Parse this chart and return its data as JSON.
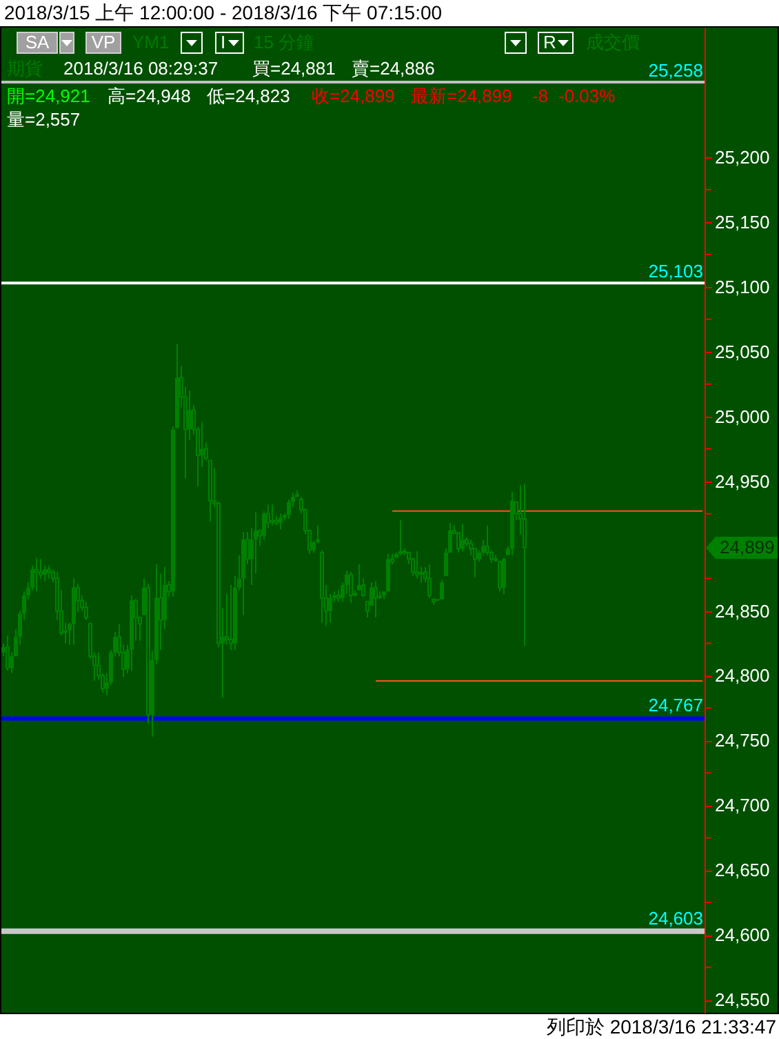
{
  "chart_data": {
    "type": "candlestick",
    "title": "2018/3/15 上午 12:00:00 - 2018/3/16 下午 07:15:00",
    "categories": [
      null,
      null,
      null,
      null,
      null,
      null,
      null,
      null,
      null,
      null,
      null,
      null,
      null,
      null,
      null,
      null,
      null,
      null,
      null,
      null,
      null,
      null,
      null,
      null,
      null,
      null,
      null,
      null,
      null,
      null,
      null,
      null,
      null,
      null,
      null,
      null,
      null,
      null,
      null,
      null,
      null,
      null,
      null,
      null,
      null,
      null,
      null,
      null,
      null,
      null,
      null,
      null,
      null,
      null,
      null,
      null,
      null,
      null,
      null,
      null,
      null,
      null,
      null,
      null,
      null,
      null,
      null,
      null,
      null,
      null,
      null,
      null,
      null,
      null,
      null,
      null,
      null,
      null,
      null,
      null,
      null,
      null,
      null,
      null,
      null,
      null,
      null,
      null,
      null,
      null,
      null,
      null,
      null,
      null,
      null,
      null,
      null,
      null,
      null,
      null,
      null,
      null,
      null,
      null,
      null,
      null,
      null,
      null,
      null,
      null,
      null,
      null,
      null,
      null,
      null,
      null,
      null,
      null,
      null,
      null,
      null,
      null,
      null,
      null,
      null,
      null,
      null,
      null,
      null,
      null,
      null,
      null,
      null,
      null,
      null,
      null,
      null,
      null,
      null,
      null,
      null,
      null,
      null,
      null,
      null,
      null,
      null,
      null,
      null,
      null,
      null,
      null,
      null,
      null,
      null,
      null,
      null,
      null,
      null,
      null,
      null,
      null,
      null,
      null,
      null,
      null,
      null,
      null,
      null,
      null
    ],
    "color": "#008000",
    "ohlc": [
      [
        24818,
        24825,
        24815,
        24822
      ],
      [
        24822,
        24831,
        24804,
        24806
      ],
      [
        24806,
        24818,
        24802,
        24815
      ],
      [
        24815,
        24836,
        24815,
        24830
      ],
      [
        24830,
        24850,
        24824,
        24848
      ],
      [
        24848,
        24865,
        24843,
        24862
      ],
      [
        24862,
        24872,
        24859,
        24868
      ],
      [
        24868,
        24885,
        24866,
        24882
      ],
      [
        24882,
        24891,
        24865,
        24880
      ],
      [
        24880,
        24890,
        24875,
        24878
      ],
      [
        24878,
        24885,
        24873,
        24882
      ],
      [
        24882,
        24885,
        24875,
        24880
      ],
      [
        24880,
        24882,
        24872,
        24875
      ],
      [
        24875,
        24880,
        24843,
        24850
      ],
      [
        24850,
        24866,
        24831,
        24833
      ],
      [
        24833,
        24841,
        24825,
        24835
      ],
      [
        24835,
        24841,
        24824,
        24840
      ],
      [
        24840,
        24875,
        24824,
        24868
      ],
      [
        24868,
        24871,
        24849,
        24858
      ],
      [
        24858,
        24862,
        24850,
        24853
      ],
      [
        24853,
        24857,
        24843,
        24845
      ],
      [
        24840,
        24841,
        24813,
        24815
      ],
      [
        24815,
        24818,
        24796,
        24808
      ],
      [
        24808,
        24818,
        24797,
        24800
      ],
      [
        24800,
        24802,
        24787,
        24790
      ],
      [
        24790,
        24802,
        24785,
        24795
      ],
      [
        24795,
        24820,
        24793,
        24818
      ],
      [
        24818,
        24834,
        24815,
        24830
      ],
      [
        24830,
        24840,
        24815,
        24818
      ],
      [
        24818,
        24824,
        24799,
        24805
      ],
      [
        24805,
        24824,
        24802,
        24820
      ],
      [
        24820,
        24862,
        24804,
        24858
      ],
      [
        24858,
        24859,
        24827,
        24845
      ],
      [
        24845,
        24845,
        24827,
        24840
      ],
      [
        24847,
        24875,
        24847,
        24868
      ],
      [
        24868,
        24871,
        24763,
        24770
      ],
      [
        24770,
        24819,
        24753,
        24812
      ],
      [
        24812,
        24886,
        24809,
        24860
      ],
      [
        24860,
        24879,
        24820,
        24843
      ],
      [
        24843,
        24884,
        24836,
        24870
      ],
      [
        24870,
        24873,
        24861,
        24865
      ],
      [
        24865,
        24992,
        24861,
        24990
      ],
      [
        24991,
        25056,
        24991,
        25030
      ],
      [
        25030,
        25039,
        25007,
        25015
      ],
      [
        25015,
        25023,
        24952,
        24990
      ],
      [
        24990,
        25020,
        24982,
        25005
      ],
      [
        25005,
        25009,
        24986,
        24990
      ],
      [
        24990,
        24992,
        24946,
        24970
      ],
      [
        24970,
        24996,
        24961,
        24975
      ],
      [
        24975,
        24980,
        24966,
        24968
      ],
      [
        24966,
        24966,
        24919,
        24935
      ],
      [
        24935,
        24960,
        24930,
        24933
      ],
      [
        24933,
        24934,
        24822,
        24825
      ],
      [
        24825,
        24852,
        24783,
        24830
      ],
      [
        24830,
        24863,
        24824,
        24828
      ],
      [
        24828,
        24870,
        24820,
        24825
      ],
      [
        24825,
        24877,
        24820,
        24868
      ],
      [
        24868,
        24893,
        24866,
        24875
      ],
      [
        24875,
        24911,
        24847,
        24905
      ],
      [
        24905,
        24911,
        24886,
        24890
      ],
      [
        24890,
        24914,
        24870,
        24905
      ],
      [
        24905,
        24926,
        24879,
        24912
      ],
      [
        24912,
        24913,
        24900,
        24908
      ],
      [
        24908,
        24927,
        24905,
        24925
      ],
      [
        24925,
        24932,
        24914,
        24918
      ],
      [
        24918,
        24932,
        24916,
        24920
      ],
      [
        24920,
        24923,
        24916,
        24918
      ],
      [
        24918,
        24925,
        24913,
        24922
      ],
      [
        24922,
        24925,
        24920,
        24924
      ],
      [
        24924,
        24936,
        24921,
        24934
      ],
      [
        24934,
        24941,
        24930,
        24938
      ],
      [
        24938,
        24943,
        24938,
        24940
      ],
      [
        24936,
        24938,
        24925,
        24928
      ],
      [
        24928,
        24929,
        24909,
        24912
      ],
      [
        24912,
        24912,
        24894,
        24897
      ],
      [
        24897,
        24904,
        24895,
        24903
      ],
      [
        24903,
        24916,
        24902,
        24905
      ],
      [
        24895,
        24897,
        24841,
        24860
      ],
      [
        24860,
        24870,
        24838,
        24850
      ],
      [
        24850,
        24863,
        24841,
        24860
      ],
      [
        24860,
        24865,
        24857,
        24862
      ],
      [
        24862,
        24866,
        24857,
        24860
      ],
      [
        24860,
        24872,
        24857,
        24870
      ],
      [
        24870,
        24881,
        24863,
        24878
      ],
      [
        24878,
        24880,
        24856,
        24862
      ],
      [
        24862,
        24866,
        24861,
        24864
      ],
      [
        24866,
        24886,
        24866,
        24870
      ],
      [
        24870,
        24875,
        24861,
        24862
      ],
      [
        24857,
        24857,
        24845,
        24850
      ],
      [
        24854,
        24872,
        24854,
        24868
      ],
      [
        24868,
        24873,
        24845,
        24860
      ],
      [
        24860,
        24865,
        24859,
        24862
      ],
      [
        24862,
        24865,
        24859,
        24865
      ],
      [
        24865,
        24894,
        24865,
        24890
      ],
      [
        24890,
        24894,
        24886,
        24888
      ],
      [
        24891,
        24895,
        24891,
        24894
      ],
      [
        24894,
        24920,
        24893,
        24896
      ],
      [
        24896,
        24898,
        24893,
        24895
      ],
      [
        24895,
        24895,
        24886,
        24890
      ],
      [
        24890,
        24891,
        24877,
        24880
      ],
      [
        24880,
        24896,
        24875,
        24878
      ],
      [
        24878,
        24884,
        24872,
        24880
      ],
      [
        24880,
        24884,
        24872,
        24875
      ],
      [
        24875,
        24886,
        24860,
        24862
      ],
      [
        24859,
        24859,
        24855,
        24857
      ],
      [
        24858,
        24859,
        24858,
        24859
      ],
      [
        24859,
        24874,
        24859,
        24872
      ],
      [
        24877,
        24898,
        24877,
        24895
      ],
      [
        24895,
        24918,
        24895,
        24912
      ],
      [
        24912,
        24916,
        24909,
        24910
      ],
      [
        24910,
        24911,
        24895,
        24898
      ],
      [
        24898,
        24917,
        24896,
        24905
      ],
      [
        24905,
        24907,
        24900,
        24902
      ],
      [
        24902,
        24905,
        24893,
        24898
      ],
      [
        24898,
        24898,
        24876,
        24890
      ],
      [
        24890,
        24897,
        24888,
        24895
      ],
      [
        24895,
        24905,
        24893,
        24900
      ],
      [
        24900,
        24916,
        24893,
        24895
      ],
      [
        24895,
        24897,
        24887,
        24890
      ],
      [
        24890,
        24893,
        24888,
        24889
      ],
      [
        24888,
        24888,
        24865,
        24868
      ],
      [
        24868,
        24891,
        24863,
        24890
      ],
      [
        24893,
        24900,
        24893,
        24898
      ],
      [
        24898,
        24942,
        24893,
        24935
      ],
      [
        24934,
        24934,
        24920,
        24925
      ],
      [
        24925,
        24947,
        24909,
        24921
      ],
      [
        24921,
        24948,
        24823,
        24899
      ],
      null,
      null,
      null,
      null,
      null,
      null,
      null,
      null,
      null,
      null,
      null,
      null,
      null,
      null,
      null,
      null,
      null,
      null,
      null,
      null,
      null,
      null,
      null,
      null,
      null,
      null,
      null,
      null,
      null,
      null,
      null,
      null,
      null,
      null,
      null,
      null,
      null,
      null,
      null,
      null,
      null,
      null,
      null
    ],
    "series": [
      {
        "type": "line",
        "color": "#ff5020",
        "values": [
          null,
          null,
          null,
          null,
          null,
          null,
          null,
          null,
          null,
          null,
          null,
          null,
          null,
          null,
          null,
          null,
          null,
          null,
          null,
          null,
          null,
          null,
          null,
          null,
          null,
          null,
          null,
          null,
          null,
          null,
          null,
          null,
          null,
          null,
          null,
          null,
          null,
          null,
          null,
          null,
          null,
          null,
          null,
          null,
          null,
          null,
          null,
          null,
          null,
          null,
          null,
          null,
          null,
          null,
          null,
          null,
          null,
          null,
          null,
          null,
          null,
          null,
          null,
          null,
          null,
          null,
          null,
          null,
          null,
          null,
          null,
          null,
          null,
          null,
          null,
          null,
          null,
          null,
          null,
          null,
          null,
          null,
          null,
          null,
          null,
          null,
          null,
          null,
          null,
          null,
          null,
          null,
          null,
          null,
          24927,
          24927,
          24927,
          24927,
          24927,
          24927,
          24927,
          24927,
          24927,
          24927,
          24927,
          24927,
          24927,
          24927,
          24927,
          24927,
          24927,
          24927,
          24927,
          24927,
          24927,
          24927,
          24927,
          24927,
          24927,
          24927,
          24927,
          24927,
          24927,
          24927,
          24927,
          24927,
          24927,
          24927,
          24927,
          24927,
          24927,
          24927,
          24927,
          24927,
          24927,
          24927,
          24927,
          24927,
          24927,
          24927,
          24927,
          24927,
          24927,
          24927,
          24927,
          24927,
          24927,
          24927,
          24927,
          24927,
          24927,
          24927,
          24927,
          24927,
          24927,
          24927,
          24927,
          24927,
          24927,
          24927,
          24927,
          24927,
          24927,
          24927,
          24927,
          24927,
          24927,
          24927,
          24927,
          24927
        ]
      },
      {
        "type": "line",
        "color": "#ff5020",
        "values": [
          null,
          null,
          null,
          null,
          null,
          null,
          null,
          null,
          null,
          null,
          null,
          null,
          null,
          null,
          null,
          null,
          null,
          null,
          null,
          null,
          null,
          null,
          null,
          null,
          null,
          null,
          null,
          null,
          null,
          null,
          null,
          null,
          null,
          null,
          null,
          null,
          null,
          null,
          null,
          null,
          null,
          null,
          null,
          null,
          null,
          null,
          null,
          null,
          null,
          null,
          null,
          null,
          null,
          null,
          null,
          null,
          null,
          null,
          null,
          null,
          null,
          null,
          null,
          null,
          null,
          null,
          null,
          null,
          null,
          null,
          null,
          null,
          null,
          null,
          null,
          null,
          null,
          null,
          null,
          null,
          null,
          null,
          null,
          null,
          null,
          null,
          null,
          null,
          null,
          null,
          24796,
          24796,
          24796,
          24796,
          24796,
          24796,
          24796,
          24796,
          24796,
          24796,
          24796,
          24796,
          24796,
          24796,
          24796,
          24796,
          24796,
          24796,
          24796,
          24796,
          24796,
          24796,
          24796,
          24796,
          24796,
          24796,
          24796,
          24796,
          24796,
          24796,
          24796,
          24796,
          24796,
          24796,
          24796,
          24796,
          24796,
          24796,
          24796,
          24796,
          24796,
          24796,
          24796,
          24796,
          24796,
          24796,
          24796,
          24796,
          24796,
          24796,
          24796,
          24796,
          24796,
          24796,
          24796,
          24796,
          24796,
          24796,
          24796,
          24796,
          24796,
          24796,
          24796,
          24796,
          24796,
          24796,
          24796,
          24796,
          24796,
          24796,
          24796,
          24796,
          24796,
          24796,
          24796,
          24796,
          24796,
          24796,
          24796,
          24796
        ]
      }
    ],
    "ylim": [
      24540,
      25300
    ],
    "yticks": [
      {
        "value": 24550,
        "label": "24,550"
      },
      {
        "value": 24575,
        "label": null
      },
      {
        "value": 24600,
        "label": "24,600"
      },
      {
        "value": 24625,
        "label": null
      },
      {
        "value": 24650,
        "label": "24,650"
      },
      {
        "value": 24675,
        "label": null
      },
      {
        "value": 24700,
        "label": "24,700"
      },
      {
        "value": 24725,
        "label": null
      },
      {
        "value": 24750,
        "label": "24,750"
      },
      {
        "value": 24775,
        "label": null
      },
      {
        "value": 24800,
        "label": "24,800"
      },
      {
        "value": 24825,
        "label": null
      },
      {
        "value": 24850,
        "label": "24,850"
      },
      {
        "value": 24875,
        "label": null
      },
      {
        "value": 24925,
        "label": null
      },
      {
        "value": 24950,
        "label": "24,950"
      },
      {
        "value": 24975,
        "label": null
      },
      {
        "value": 25000,
        "label": "25,000"
      },
      {
        "value": 25025,
        "label": null
      },
      {
        "value": 25050,
        "label": "25,050"
      },
      {
        "value": 25075,
        "label": null
      },
      {
        "value": 25100,
        "label": "25,100"
      },
      {
        "value": 25125,
        "label": null
      },
      {
        "value": 25150,
        "label": "25,150"
      },
      {
        "value": 25175,
        "label": null
      },
      {
        "value": 25200,
        "label": "25,200"
      }
    ],
    "ref_lines": [
      {
        "axis": "y",
        "value": 25258,
        "label": "25,258",
        "color": "#c0c0c0"
      },
      {
        "axis": "y",
        "value": 25103,
        "label": "25,103",
        "color": "#ffffff"
      },
      {
        "axis": "y",
        "value": 24767,
        "label": "24,767",
        "color": "#0000ff"
      },
      {
        "axis": "y",
        "value": 24603,
        "label": "24,603",
        "color": "#c8c8c8"
      }
    ],
    "annotations": [
      "SA",
      "VP",
      "YM1",
      "I",
      "15 分鐘",
      "R",
      "成交價",
      "期貨",
      "2018/3/16 08:29:37",
      "買=24,881",
      "賣=24,886",
      "開=24,921",
      "高=24,948",
      "低=24,823",
      "收=24,899",
      "最新=24,899",
      "-8",
      "-0.03%",
      "量=2,557",
      "列印於 2018/3/16 21:33:47",
      "24,899"
    ]
  }
}
